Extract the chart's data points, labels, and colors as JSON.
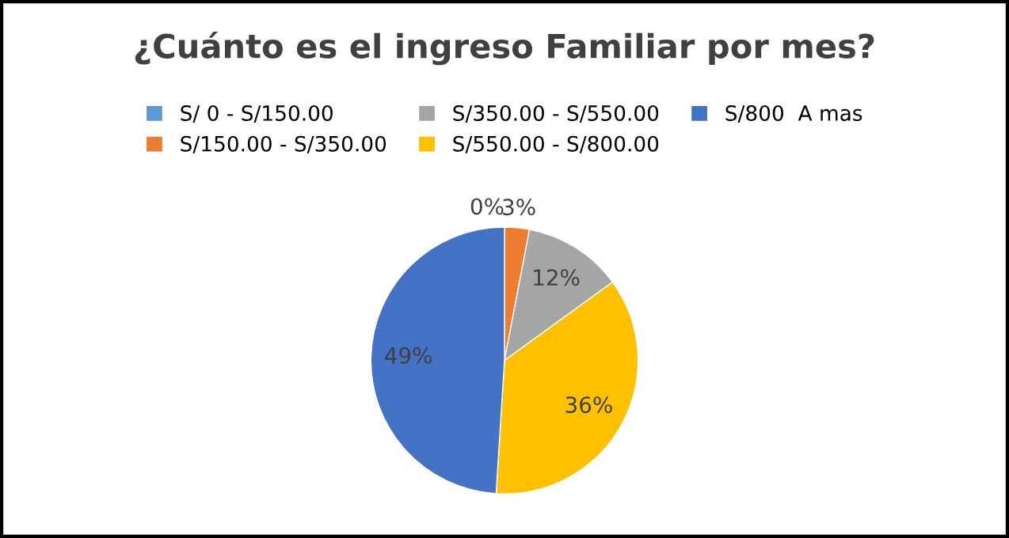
{
  "chart_data": {
    "type": "pie",
    "title": "¿Cuánto es el ingreso Familiar por mes?",
    "categories": [
      "S/ 0 - S/150.00",
      "S/150.00 - S/350.00",
      "S/350.00 - S/550.00",
      "S/550.00 - S/800.00",
      "S/800  A mas"
    ],
    "values": [
      0,
      3,
      12,
      36,
      49
    ],
    "colors": [
      "#5b9bd5",
      "#ed7d31",
      "#a5a5a5",
      "#ffc000",
      "#4472c4"
    ],
    "value_labels": [
      "0%",
      "3%",
      "12%",
      "36%",
      "49%"
    ],
    "legend": "top"
  }
}
